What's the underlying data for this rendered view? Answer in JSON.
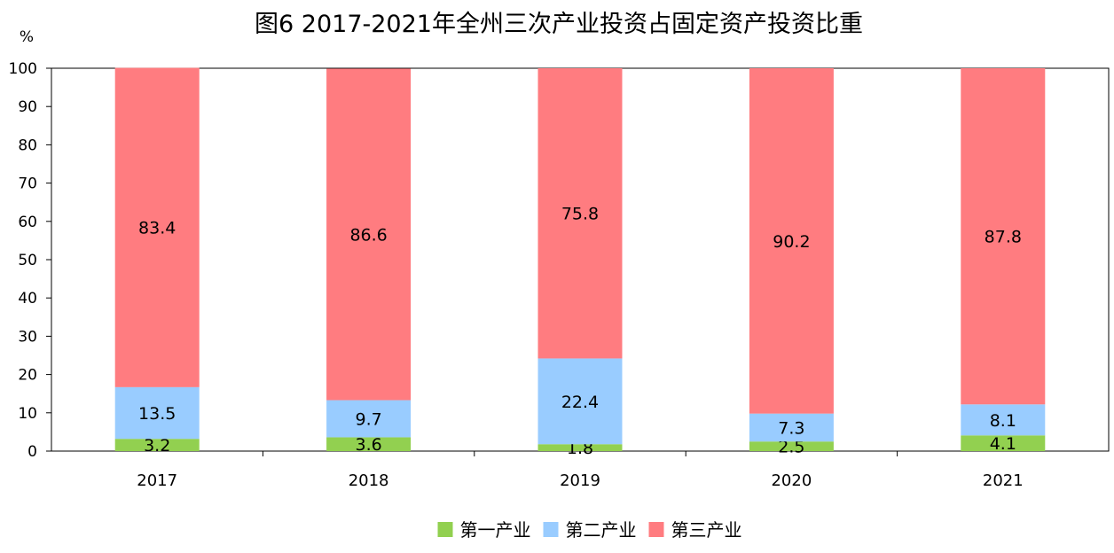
{
  "chart_data": {
    "type": "bar",
    "stacked": true,
    "title": "图6  2017-2021年全州三次产业投资占固定资产投资比重",
    "ylabel": "%",
    "xlabel": "",
    "categories": [
      "2017",
      "2018",
      "2019",
      "2020",
      "2021"
    ],
    "ylim": [
      0,
      100
    ],
    "yticks": [
      0,
      10,
      20,
      30,
      40,
      50,
      60,
      70,
      80,
      90,
      100
    ],
    "grid": false,
    "legend_position": "bottom",
    "series": [
      {
        "name": "第一产业",
        "color": "#92D050",
        "values": [
          3.2,
          3.6,
          1.8,
          2.5,
          4.1
        ]
      },
      {
        "name": "第二产业",
        "color": "#99CCFF",
        "values": [
          13.5,
          9.7,
          22.4,
          7.3,
          8.1
        ]
      },
      {
        "name": "第三产业",
        "color": "#FF7C80",
        "values": [
          83.4,
          86.6,
          75.8,
          90.2,
          87.8
        ]
      }
    ]
  }
}
